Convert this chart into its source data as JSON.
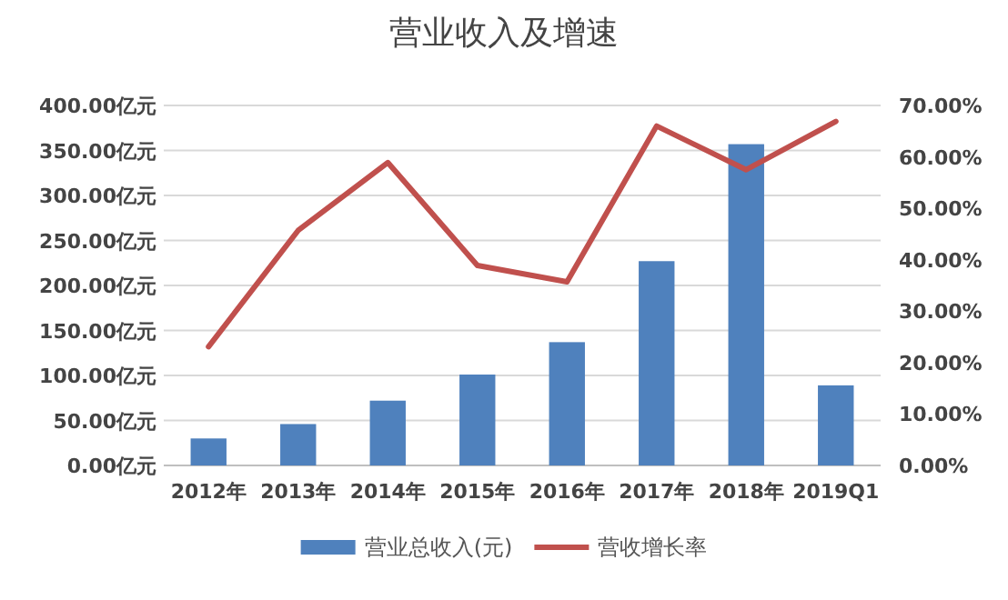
{
  "chart_data": {
    "type": "bar",
    "title": "营业收入及增速",
    "categories": [
      "2012年",
      "2013年",
      "2014年",
      "2015年",
      "2016年",
      "2017年",
      "2018年",
      "2019Q1"
    ],
    "series": [
      {
        "name": "营业总收入(元)",
        "color": "#4f81bd",
        "values": [
          30,
          46,
          72,
          101,
          137,
          227,
          357,
          89
        ]
      },
      {
        "name": "营收增长率",
        "type": "line",
        "axis": "y2",
        "color": "#c0504d",
        "values": [
          23.1,
          45.7,
          58.9,
          38.9,
          35.7,
          66.0,
          57.5,
          66.9
        ]
      }
    ],
    "ylim": [
      0,
      400
    ],
    "yticks": [
      {
        "value": 0,
        "label": "0.00亿元"
      },
      {
        "value": 50,
        "label": "50.00亿元"
      },
      {
        "value": 100,
        "label": "100.00亿元"
      },
      {
        "value": 150,
        "label": "150.00亿元"
      },
      {
        "value": 200,
        "label": "200.00亿元"
      },
      {
        "value": 250,
        "label": "250.00亿元"
      },
      {
        "value": 300,
        "label": "300.00亿元"
      },
      {
        "value": 350,
        "label": "350.00亿元"
      },
      {
        "value": 400,
        "label": "400.00亿元"
      }
    ],
    "y2lim": [
      0,
      70
    ],
    "y2ticks": [
      {
        "value": 0,
        "label": "0.00%"
      },
      {
        "value": 10,
        "label": "10.00%"
      },
      {
        "value": 20,
        "label": "20.00%"
      },
      {
        "value": 30,
        "label": "30.00%"
      },
      {
        "value": 40,
        "label": "40.00%"
      },
      {
        "value": 50,
        "label": "50.00%"
      },
      {
        "value": 60,
        "label": "60.00%"
      },
      {
        "value": 70,
        "label": "70.00%"
      }
    ],
    "grid": "y",
    "legend": "bottom",
    "marker": "none",
    "line_style": "solid"
  }
}
